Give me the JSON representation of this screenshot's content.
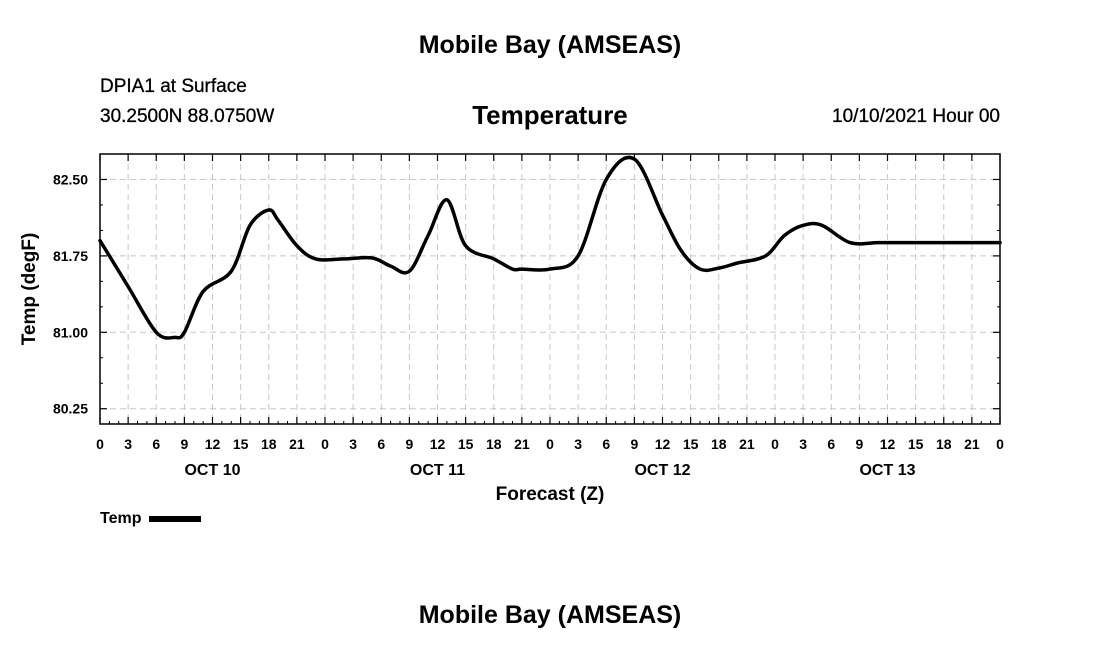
{
  "header": {
    "top_title": "Mobile Bay (AMSEAS)",
    "station": "DPIA1 at Surface",
    "coords": "30.2500N  88.0750W",
    "parameter": "Temperature",
    "datetime": "10/10/2021 Hour 00",
    "bottom_title": "Mobile Bay (AMSEAS)"
  },
  "legend": {
    "label": "Temp"
  },
  "chart_data": {
    "type": "line",
    "title": "Temperature",
    "xlabel": "Forecast (Z)",
    "ylabel": "Temp (degF)",
    "xlim": [
      0,
      96
    ],
    "ylim": [
      80.1,
      82.75
    ],
    "yticks": [
      "80.25",
      "81.00",
      "81.75",
      "82.50"
    ],
    "ytick_values": [
      80.25,
      81.0,
      81.75,
      82.5
    ],
    "xtick_labels": [
      "0",
      "3",
      "6",
      "9",
      "12",
      "15",
      "18",
      "21",
      "0",
      "3",
      "6",
      "9",
      "12",
      "15",
      "18",
      "21",
      "0",
      "3",
      "6",
      "9",
      "12",
      "15",
      "18",
      "21",
      "0",
      "3",
      "6",
      "9",
      "12",
      "15",
      "18",
      "21",
      "0"
    ],
    "day_labels": [
      {
        "hour": 12,
        "label": "OCT 10"
      },
      {
        "hour": 36,
        "label": "OCT 11"
      },
      {
        "hour": 60,
        "label": "OCT 12"
      },
      {
        "hour": 84,
        "label": "OCT 13"
      }
    ],
    "grid": true,
    "color": "#000000",
    "series": [
      {
        "name": "Temp",
        "x": [
          0,
          3,
          6,
          8,
          9,
          11,
          14,
          16,
          18,
          19,
          21,
          23,
          26,
          29,
          31,
          33,
          35,
          37,
          39,
          42,
          44,
          45,
          48,
          51,
          54,
          57,
          60,
          62,
          64,
          66,
          68,
          71,
          73,
          75,
          77,
          80,
          83,
          86,
          89,
          92,
          94,
          96
        ],
        "y": [
          81.9,
          81.45,
          81.0,
          80.95,
          81.0,
          81.4,
          81.6,
          82.05,
          82.2,
          82.1,
          81.85,
          81.72,
          81.72,
          81.73,
          81.65,
          81.6,
          81.95,
          82.3,
          81.85,
          81.72,
          81.62,
          81.62,
          81.62,
          81.75,
          82.5,
          82.7,
          82.15,
          81.8,
          81.62,
          81.63,
          81.68,
          81.75,
          81.95,
          82.05,
          82.05,
          81.88,
          81.88,
          81.88,
          81.88,
          81.88,
          81.88,
          81.88
        ]
      }
    ]
  }
}
